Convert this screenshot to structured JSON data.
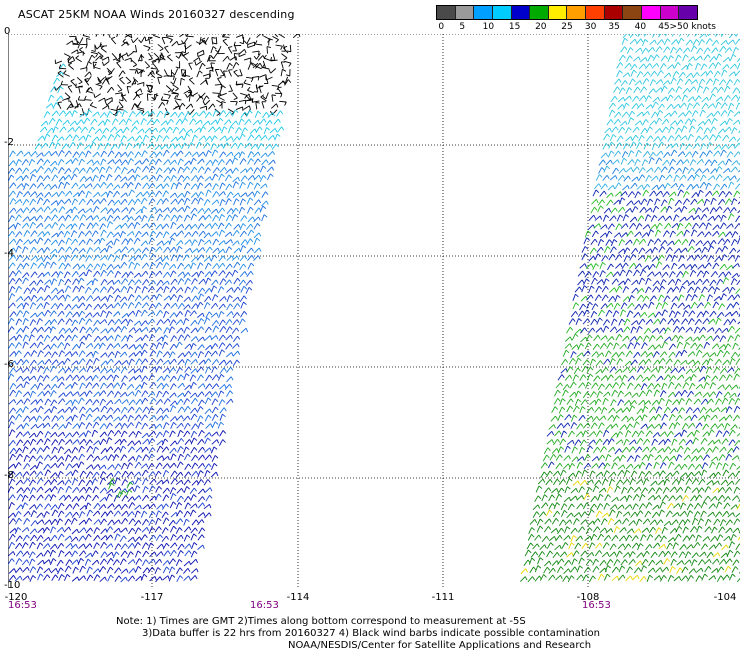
{
  "title": "ASCAT 25KM NOAA Winds 20160327 descending",
  "legend": {
    "colors": [
      "#4a4a4a",
      "#9a9a9a",
      "#00a0ff",
      "#00ccff",
      "#0000cc",
      "#00aa00",
      "#ffee00",
      "#ffa000",
      "#ff4000",
      "#aa0000",
      "#8b4513",
      "#ff00ff",
      "#cc00cc",
      "#6600aa"
    ],
    "labels": [
      "0",
      "5",
      "10",
      "15",
      "20",
      "25",
      "30",
      "35",
      "40",
      "45",
      ">50 knots"
    ]
  },
  "axes": {
    "y_labels": [
      "0",
      "-2",
      "-4",
      "-6",
      "-8",
      "-10"
    ],
    "x_labels": [
      "-120",
      "-117",
      "-114",
      "-111",
      "-108",
      "-104"
    ]
  },
  "times": [
    "16:53",
    "16:53",
    "16:53"
  ],
  "notes": {
    "line1": "Note: 1) Times are GMT 2)Times along bottom correspond to measurement at -5S",
    "line2": "3)Data buffer is 22 hrs from 20160327 4) Black wind barbs indicate possible contamination",
    "line3": "NOAA/NESDIS/Center for Satellite Applications and Research"
  }
}
